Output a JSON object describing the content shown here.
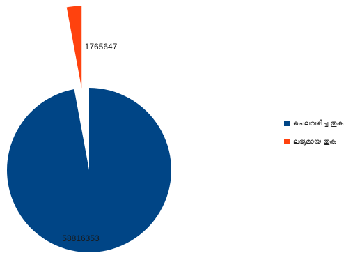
{
  "chart_data": {
    "type": "pie",
    "exploded": true,
    "categories": [
      "ചെലവഴിച്ച തുക",
      "ലഭ്യമായ തുക"
    ],
    "values": [
      58816353,
      1765647
    ],
    "colors": [
      "#004586",
      "#ff420e"
    ],
    "data_labels": [
      "58816353",
      "1765647"
    ],
    "legend_position": "right",
    "title": ""
  }
}
